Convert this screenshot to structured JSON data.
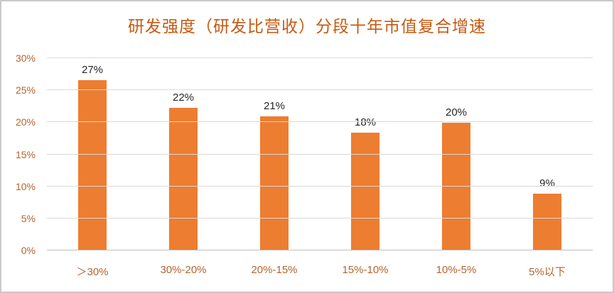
{
  "chart": {
    "colors": {
      "bar": "#ED7D31",
      "title": "#C55A11",
      "axis_label": "#B4642D",
      "grid": "#D9D9D9",
      "axis_line": "#BFBFBF",
      "value_label": "#262626"
    }
  },
  "chart_data": {
    "type": "bar",
    "title": "研发强度（研发比营收）分段十年市值复合增速",
    "categories": [
      "＞30%",
      "30%-20%",
      "20%-15%",
      "15%-10%",
      "10%-5%",
      "5%以下"
    ],
    "values": [
      26.6,
      22.2,
      20.9,
      18.4,
      19.9,
      8.9
    ],
    "data_labels": [
      "27%",
      "22%",
      "21%",
      "18%",
      "20%",
      "9%"
    ],
    "xlabel": "",
    "ylabel": "",
    "ylim": [
      0,
      30
    ],
    "yticks": [
      "0%",
      "5%",
      "10%",
      "15%",
      "20%",
      "25%",
      "30%"
    ],
    "grid": true,
    "legend": false
  }
}
